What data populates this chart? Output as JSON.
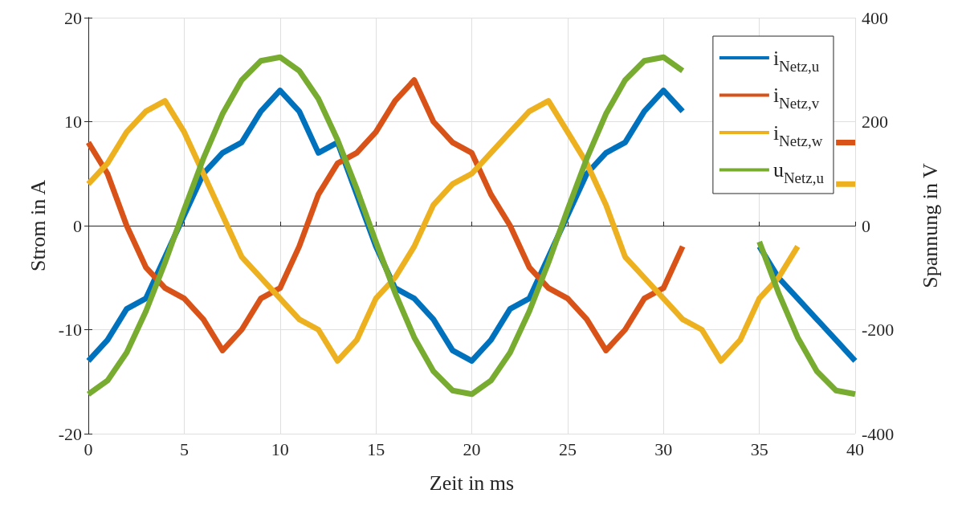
{
  "chart_data": {
    "type": "line",
    "xlabel": "Zeit in ms",
    "ylabel": "Strom in A",
    "y2label": "Spannung in V",
    "x": [
      0,
      1,
      2,
      3,
      4,
      5,
      6,
      7,
      8,
      9,
      10,
      11,
      12,
      13,
      14,
      15,
      16,
      17,
      18,
      19,
      20,
      21,
      22,
      23,
      24,
      25,
      26,
      27,
      28,
      29,
      30,
      31,
      32,
      33,
      34,
      35,
      36,
      37,
      38,
      39,
      40
    ],
    "xlim": [
      0,
      40
    ],
    "xticks": [
      0,
      5,
      10,
      15,
      20,
      25,
      30,
      35,
      40
    ],
    "ylim": [
      -20,
      20
    ],
    "yticks": [
      -20,
      -10,
      0,
      10,
      20
    ],
    "y2lim": [
      -400,
      400
    ],
    "y2ticks": [
      -400,
      -200,
      0,
      200,
      400
    ],
    "grid": true,
    "legend": "top right",
    "series": [
      {
        "name": "i$_{Netz,u}$",
        "color": "#0072bd",
        "values": [
          -13,
          -11,
          -8,
          -7,
          -3,
          1,
          5,
          7,
          8,
          11,
          13,
          11,
          7,
          8,
          3,
          -2,
          -6,
          -7,
          -9,
          -12,
          -13,
          -11,
          -8,
          -7,
          -3,
          1,
          5,
          7,
          8,
          11,
          13,
          11,
          null,
          null,
          null,
          -2,
          -5,
          -7,
          -9,
          -11,
          -13
        ]
      },
      {
        "name": "i$_{Netz,v}$",
        "color": "#d95319",
        "values": [
          8,
          5,
          0,
          -4,
          -6,
          -7,
          -9,
          -12,
          -10,
          -7,
          -6,
          -2,
          3,
          6,
          7,
          9,
          12,
          14,
          10,
          8,
          7,
          3,
          0,
          -4,
          -6,
          -7,
          -9,
          -12,
          -10,
          -7,
          -6,
          -2,
          null,
          null,
          null,
          null,
          null,
          null,
          null,
          8,
          8
        ]
      },
      {
        "name": "i$_{Netz,w}$",
        "color": "#edb120",
        "values": [
          4,
          6,
          9,
          11,
          12,
          9,
          5,
          1,
          -3,
          -5,
          -7,
          -9,
          -10,
          -13,
          -11,
          -7,
          -5,
          -2,
          2,
          4,
          5,
          7,
          9,
          11,
          12,
          9,
          6,
          2,
          -3,
          -5,
          -7,
          -9,
          -10,
          -13,
          -11,
          -7,
          -5,
          -2,
          null,
          4,
          4
        ]
      },
      {
        "name": "u$_{Netz,u}$",
        "color": "#77ac30",
        "axis": "y2",
        "values": [
          -324,
          -298,
          -244,
          -165,
          -71,
          31,
          129,
          215,
          280,
          317,
          324,
          298,
          244,
          165,
          71,
          -31,
          -129,
          -215,
          -280,
          -317,
          -324,
          -298,
          -244,
          -165,
          -71,
          31,
          129,
          215,
          280,
          317,
          324,
          298,
          null,
          null,
          null,
          -31,
          -129,
          -215,
          -280,
          -317,
          -324
        ]
      }
    ]
  }
}
